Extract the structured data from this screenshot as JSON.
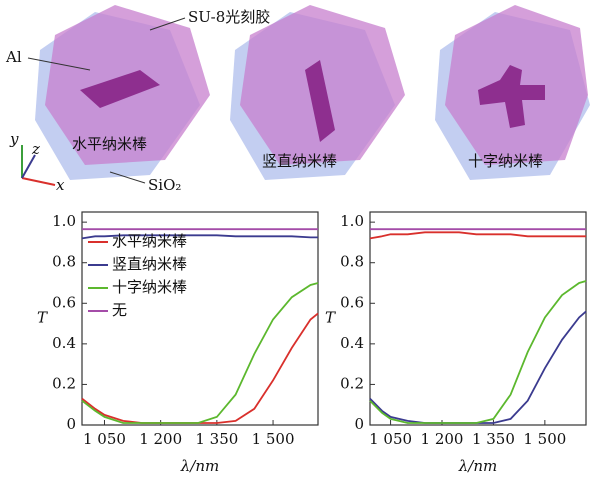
{
  "illustration": {
    "resist_label": "SU-8光刻胶",
    "metal_label": "Al",
    "substrate_label": "SiO₂",
    "axis_y": "y",
    "axis_z": "z",
    "axis_x": "x",
    "structures": [
      "水平纳米棒",
      "竖直纳米棒",
      "十字纳米棒"
    ]
  },
  "chart_data": [
    {
      "type": "line",
      "xlabel": "λ/nm",
      "ylabel": "T",
      "x": [
        990,
        1025,
        1050,
        1100,
        1150,
        1200,
        1250,
        1300,
        1350,
        1400,
        1450,
        1500,
        1550,
        1600,
        1620
      ],
      "xlim": [
        990,
        1620
      ],
      "ylim": [
        0,
        1.05
      ],
      "xticks": [
        {
          "value": 1050,
          "label": "1 050"
        },
        {
          "value": 1200,
          "label": "1 200"
        },
        {
          "value": 1350,
          "label": "1 350"
        },
        {
          "value": 1500,
          "label": "1 500"
        }
      ],
      "yticks": [
        0,
        0.2,
        0.4,
        0.6,
        0.8,
        {
          "value": 1.0,
          "label": "1.0"
        }
      ],
      "legend": "upper left",
      "series": [
        {
          "name": "水平纳米棒",
          "color": "#d9302c",
          "values": [
            0.13,
            0.08,
            0.05,
            0.02,
            0.01,
            0.01,
            0.01,
            0.01,
            0.01,
            0.02,
            0.08,
            0.22,
            0.38,
            0.52,
            0.55
          ]
        },
        {
          "name": "竖直纳米棒",
          "color": "#3b3b8f",
          "values": [
            0.92,
            0.93,
            0.93,
            0.935,
            0.935,
            0.935,
            0.935,
            0.935,
            0.935,
            0.93,
            0.93,
            0.93,
            0.93,
            0.925,
            0.925
          ]
        },
        {
          "name": "十字纳米棒",
          "color": "#5cb82e",
          "values": [
            0.12,
            0.07,
            0.04,
            0.01,
            0.01,
            0.01,
            0.01,
            0.01,
            0.04,
            0.15,
            0.35,
            0.52,
            0.63,
            0.69,
            0.7
          ]
        },
        {
          "name": "无",
          "color": "#a44ca8",
          "values": [
            0.965,
            0.965,
            0.965,
            0.965,
            0.965,
            0.965,
            0.965,
            0.965,
            0.965,
            0.965,
            0.965,
            0.965,
            0.965,
            0.965,
            0.965
          ]
        }
      ]
    },
    {
      "type": "line",
      "xlabel": "λ/nm",
      "ylabel": "T",
      "x": [
        990,
        1025,
        1050,
        1100,
        1150,
        1200,
        1250,
        1300,
        1350,
        1400,
        1450,
        1500,
        1550,
        1600,
        1620
      ],
      "xlim": [
        990,
        1620
      ],
      "ylim": [
        0,
        1.05
      ],
      "xticks": [
        {
          "value": 1050,
          "label": "1 050"
        },
        {
          "value": 1200,
          "label": "1 200"
        },
        {
          "value": 1350,
          "label": "1 350"
        },
        {
          "value": 1500,
          "label": "1 500"
        }
      ],
      "yticks": [
        0,
        0.2,
        0.4,
        0.6,
        0.8,
        {
          "value": 1.0,
          "label": "1.0"
        }
      ],
      "series": [
        {
          "color": "#d9302c",
          "values": [
            0.92,
            0.93,
            0.94,
            0.94,
            0.95,
            0.95,
            0.95,
            0.94,
            0.94,
            0.94,
            0.93,
            0.93,
            0.93,
            0.93,
            0.93
          ]
        },
        {
          "color": "#3b3b8f",
          "values": [
            0.13,
            0.07,
            0.04,
            0.02,
            0.01,
            0.01,
            0.01,
            0.01,
            0.01,
            0.03,
            0.12,
            0.28,
            0.42,
            0.53,
            0.56
          ]
        },
        {
          "color": "#5cb82e",
          "values": [
            0.12,
            0.06,
            0.03,
            0.01,
            0.01,
            0.01,
            0.01,
            0.01,
            0.03,
            0.15,
            0.36,
            0.53,
            0.64,
            0.7,
            0.71
          ]
        },
        {
          "color": "#a44ca8",
          "values": [
            0.965,
            0.965,
            0.965,
            0.965,
            0.965,
            0.965,
            0.965,
            0.965,
            0.965,
            0.965,
            0.965,
            0.965,
            0.965,
            0.965,
            0.965
          ]
        }
      ]
    }
  ]
}
